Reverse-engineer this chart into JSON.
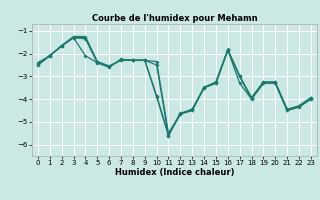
{
  "title": "Courbe de l'humidex pour Mehamn",
  "xlabel": "Humidex (Indice chaleur)",
  "bg_color": "#cce8e4",
  "line_color": "#1a7a6e",
  "grid_color": "#ffffff",
  "xlim": [
    -0.5,
    23.5
  ],
  "ylim": [
    -6.5,
    -0.7
  ],
  "yticks": [
    -6,
    -5,
    -4,
    -3,
    -2,
    -1
  ],
  "xticks": [
    0,
    1,
    2,
    3,
    4,
    5,
    6,
    7,
    8,
    9,
    10,
    11,
    12,
    13,
    14,
    15,
    16,
    17,
    18,
    19,
    20,
    21,
    22,
    23
  ],
  "line1_x": [
    0,
    1,
    2,
    3,
    4,
    5,
    6,
    7,
    8,
    9,
    10,
    11,
    12,
    13,
    14,
    15,
    16,
    17,
    18,
    19,
    20,
    21,
    22,
    23
  ],
  "line1_y": [
    -2.5,
    -2.1,
    -1.65,
    -1.3,
    -1.35,
    -2.4,
    -2.6,
    -2.25,
    -2.3,
    -2.3,
    -3.9,
    -5.6,
    -4.65,
    -4.5,
    -3.5,
    -3.3,
    -1.85,
    -3.0,
    -4.0,
    -3.3,
    -3.3,
    -4.5,
    -4.35,
    -4.0
  ],
  "line2_x": [
    0,
    1,
    2,
    3,
    4,
    5,
    6,
    7,
    8,
    9,
    10,
    11,
    12,
    13,
    14,
    15,
    16,
    17,
    18,
    19,
    20,
    21,
    22,
    23
  ],
  "line2_y": [
    -2.5,
    -2.1,
    -1.65,
    -1.3,
    -2.1,
    -2.4,
    -2.6,
    -2.25,
    -2.3,
    -2.3,
    -2.5,
    -5.6,
    -4.65,
    -4.5,
    -3.5,
    -3.3,
    -1.85,
    -3.3,
    -4.0,
    -3.3,
    -3.3,
    -4.5,
    -4.35,
    -4.0
  ],
  "line3_x": [
    0,
    1,
    2,
    3,
    4,
    5,
    6,
    7,
    8,
    9,
    10,
    11,
    12,
    13,
    14,
    15,
    16,
    17,
    18,
    19,
    20,
    21,
    22,
    23
  ],
  "line3_y": [
    -2.4,
    -2.1,
    -1.65,
    -1.25,
    -1.25,
    -2.35,
    -2.55,
    -2.3,
    -2.3,
    -2.3,
    -2.35,
    -5.5,
    -4.65,
    -4.45,
    -3.5,
    -3.25,
    -1.85,
    -3.0,
    -3.95,
    -3.25,
    -3.25,
    -4.45,
    -4.3,
    -3.95
  ],
  "line4_x": [
    0,
    1,
    2,
    3,
    4,
    5,
    6,
    7,
    8,
    9,
    10,
    11,
    12,
    13,
    14,
    15,
    16,
    17,
    18,
    19,
    20,
    21,
    22,
    23
  ],
  "line4_y": [
    -2.45,
    -2.08,
    -1.68,
    -1.3,
    -1.3,
    -2.35,
    -2.55,
    -2.28,
    -2.28,
    -2.28,
    -3.85,
    -5.55,
    -4.62,
    -4.45,
    -3.48,
    -3.25,
    -1.82,
    -2.98,
    -3.93,
    -3.25,
    -3.25,
    -4.45,
    -4.3,
    -3.93
  ]
}
